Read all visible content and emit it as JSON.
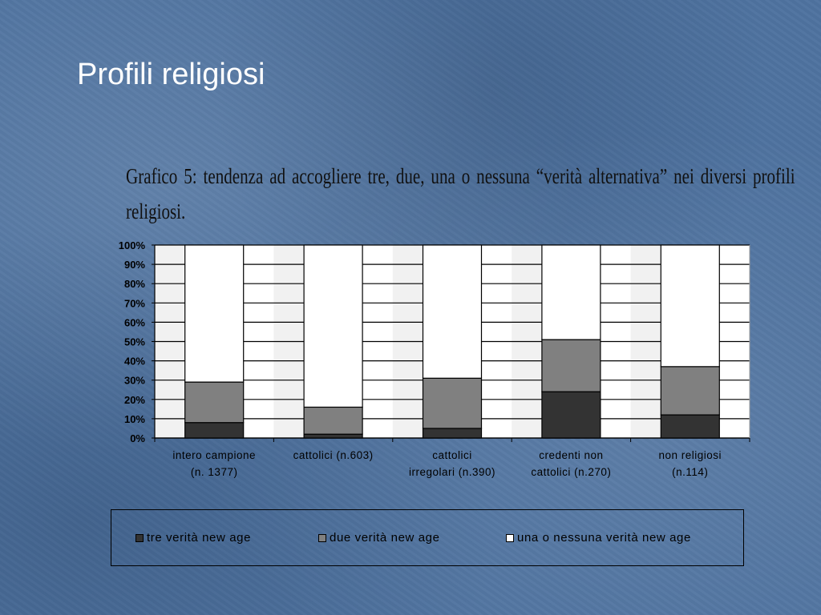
{
  "slide": {
    "title": "Profili religiosi",
    "caption": "Grafico 5: tendenza ad accogliere tre, due, una o nessuna “verità alternativa” nei diversi profili religiosi."
  },
  "colors": {
    "tre": "#333333",
    "due": "#808080",
    "una": "#ffffff"
  },
  "chart_data": {
    "type": "bar",
    "stacked": true,
    "categories": [
      [
        "intero campione",
        "(n. 1377)"
      ],
      [
        "cattolici (n.603)"
      ],
      [
        "cattolici",
        "irregolari (n.390)"
      ],
      [
        "credenti non",
        "cattolici (n.270)"
      ],
      [
        "non religiosi",
        "(n.114)"
      ]
    ],
    "series": [
      {
        "name": "tre verità new age",
        "values": [
          8,
          2,
          5,
          24,
          12
        ]
      },
      {
        "name": "due verità new age",
        "values": [
          21,
          14,
          26,
          27,
          25
        ]
      },
      {
        "name": "una o nessuna verità new age",
        "values": [
          71,
          84,
          69,
          49,
          63
        ]
      }
    ],
    "yticks": [
      "0%",
      "10%",
      "20%",
      "30%",
      "40%",
      "50%",
      "60%",
      "70%",
      "80%",
      "90%",
      "100%"
    ],
    "ylim": [
      0,
      100
    ],
    "grid": true,
    "legend_position": "bottom"
  }
}
